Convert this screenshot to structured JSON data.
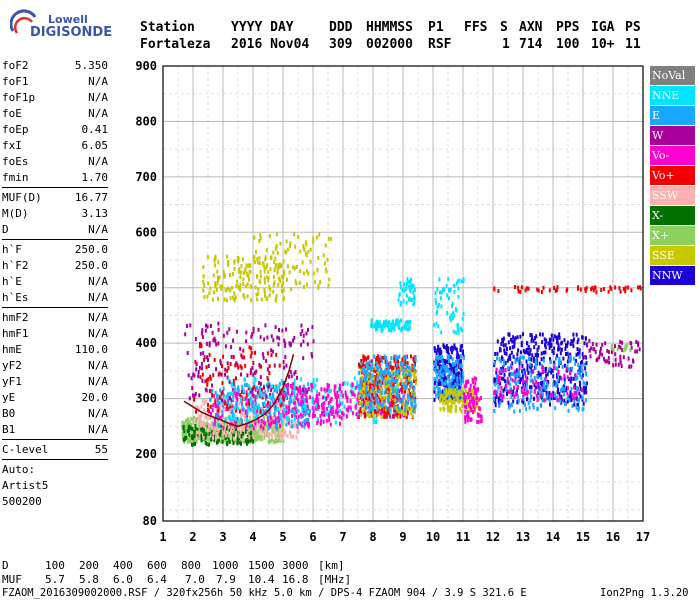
{
  "logo": {
    "line1": "Lowell",
    "line2": "DIGISONDE"
  },
  "header": {
    "labels": [
      "Station",
      "YYYY DAY",
      "DDD",
      "HHMMSS",
      "P1",
      "FFS",
      "S",
      "AXN",
      "PPS",
      "IGA",
      "PS"
    ],
    "values": [
      "Fortaleza",
      "2016 Nov04",
      "309",
      "002000",
      "RSF",
      "1",
      "714",
      "100",
      "10+",
      "11"
    ]
  },
  "params": {
    "group1": [
      {
        "k": "foF2",
        "v": "5.350"
      },
      {
        "k": "foF1",
        "v": "N/A"
      },
      {
        "k": "foF1p",
        "v": "N/A"
      },
      {
        "k": "foE",
        "v": "N/A"
      },
      {
        "k": "foEp",
        "v": "0.41"
      },
      {
        "k": "fxI",
        "v": "6.05"
      },
      {
        "k": "foEs",
        "v": "N/A"
      },
      {
        "k": "fmin",
        "v": "1.70"
      }
    ],
    "group2": [
      {
        "k": "MUF(D)",
        "v": "16.77"
      },
      {
        "k": "M(D)",
        "v": "3.13"
      },
      {
        "k": "D",
        "v": "N/A"
      }
    ],
    "group3": [
      {
        "k": "h`F",
        "v": "250.0"
      },
      {
        "k": "h`F2",
        "v": "250.0"
      },
      {
        "k": "h`E",
        "v": "N/A"
      },
      {
        "k": "h`Es",
        "v": "N/A"
      }
    ],
    "group4": [
      {
        "k": "hmF2",
        "v": "N/A"
      },
      {
        "k": "hmF1",
        "v": "N/A"
      },
      {
        "k": "hmE",
        "v": "110.0"
      },
      {
        "k": "yF2",
        "v": "N/A"
      },
      {
        "k": "yF1",
        "v": "N/A"
      },
      {
        "k": "yE",
        "v": "20.0"
      },
      {
        "k": "B0",
        "v": "N/A"
      },
      {
        "k": "B1",
        "v": "N/A"
      }
    ],
    "group5": [
      {
        "k": "C-level",
        "v": "55"
      }
    ],
    "autoscaling": [
      "Auto:",
      "Artist5",
      "500200"
    ]
  },
  "legend": [
    {
      "label": "NoVal",
      "color": "#808080"
    },
    {
      "label": "NNE",
      "color": "#00e5ff"
    },
    {
      "label": "E",
      "color": "#18a8ff"
    },
    {
      "label": "W",
      "color": "#a8009a"
    },
    {
      "label": "Vo-",
      "color": "#ff00d0"
    },
    {
      "label": "Vo+",
      "color": "#f00000"
    },
    {
      "label": "SSW",
      "color": "#ffb0b0"
    },
    {
      "label": "X-",
      "color": "#007000"
    },
    {
      "label": "X+",
      "color": "#8cd060"
    },
    {
      "label": "SSE",
      "color": "#c8c800"
    },
    {
      "label": "NNW",
      "color": "#1c00d8"
    }
  ],
  "footer": {
    "d_label": "D",
    "d_values": [
      "100",
      "200",
      "400",
      "600",
      "800",
      "1000",
      "1500",
      "3000",
      "[km]"
    ],
    "muf_label": "MUF",
    "muf_values": [
      "5.7",
      "5.8",
      "6.0",
      "6.4",
      "7.0",
      "7.9",
      "10.4",
      "16.8",
      "[MHz]"
    ],
    "info": "FZAOM_2016309002000.RSF / 320fx256h 50 kHz 5.0 km / DPS-4 FZAOM 904 / 3.9 S 321.6 E",
    "version": "Ion2Png 1.3.20"
  },
  "chart_data": {
    "type": "scatter",
    "xlabel": "",
    "ylabel": "",
    "xlim": [
      1,
      17
    ],
    "ylim": [
      80,
      900
    ],
    "xticks": [
      "1",
      "2",
      "3",
      "4",
      "5",
      "6",
      "7",
      "8",
      "9",
      "10",
      "11",
      "12",
      "13",
      "14",
      "15",
      "16",
      "17"
    ],
    "yticks": [
      "80",
      "200",
      "300",
      "400",
      "500",
      "600",
      "700",
      "800",
      "900"
    ],
    "grid": true,
    "trace": {
      "x": [
        1.7,
        2.0,
        2.3,
        2.6,
        2.9,
        3.2,
        3.5,
        3.8,
        4.1,
        4.4,
        4.7,
        5.0,
        5.2,
        5.35
      ],
      "y": [
        295,
        285,
        275,
        268,
        262,
        255,
        250,
        255,
        262,
        272,
        290,
        320,
        350,
        380
      ],
      "color": "#8b0000"
    },
    "clusters": [
      {
        "x": [
          1.6,
          5.0
        ],
        "y": [
          225,
          270
        ],
        "n": 420,
        "color": "#8cd060"
      },
      {
        "x": [
          1.6,
          4.0
        ],
        "y": [
          220,
          255
        ],
        "n": 140,
        "color": "#007000"
      },
      {
        "x": [
          2.0,
          5.5
        ],
        "y": [
          230,
          300
        ],
        "n": 260,
        "color": "#ffb0b0"
      },
      {
        "x": [
          2.5,
          7.0
        ],
        "y": [
          250,
          320
        ],
        "n": 220,
        "color": "#ff00d0"
      },
      {
        "x": [
          2.5,
          6.0
        ],
        "y": [
          250,
          330
        ],
        "n": 180,
        "color": "#18a8ff"
      },
      {
        "x": [
          1.7,
          6.0
        ],
        "y": [
          300,
          440
        ],
        "n": 180,
        "color": "#a8009a"
      },
      {
        "x": [
          2.0,
          5.0
        ],
        "y": [
          280,
          400
        ],
        "n": 90,
        "color": "#f00000"
      },
      {
        "x": [
          2.3,
          5.0
        ],
        "y": [
          480,
          560
        ],
        "n": 170,
        "color": "#c8c800"
      },
      {
        "x": [
          4.0,
          6.6
        ],
        "y": [
          500,
          600
        ],
        "n": 90,
        "color": "#c8c800"
      },
      {
        "x": [
          3.0,
          9.0
        ],
        "y": [
          260,
          340
        ],
        "n": 220,
        "color": "#00e5ff"
      },
      {
        "x": [
          5.0,
          9.2
        ],
        "y": [
          270,
          330
        ],
        "n": 200,
        "color": "#ff00d0"
      },
      {
        "x": [
          7.5,
          9.4
        ],
        "y": [
          270,
          380
        ],
        "n": 300,
        "color": "#f00000"
      },
      {
        "x": [
          7.5,
          9.4
        ],
        "y": [
          270,
          360
        ],
        "n": 200,
        "color": "#c8c800"
      },
      {
        "x": [
          7.5,
          9.4
        ],
        "y": [
          280,
          380
        ],
        "n": 180,
        "color": "#18a8ff"
      },
      {
        "x": [
          7.9,
          9.2
        ],
        "y": [
          425,
          445
        ],
        "n": 90,
        "color": "#00e5ff"
      },
      {
        "x": [
          8.8,
          9.4
        ],
        "y": [
          470,
          520
        ],
        "n": 40,
        "color": "#00e5ff"
      },
      {
        "x": [
          10.0,
          11.0
        ],
        "y": [
          300,
          400
        ],
        "n": 220,
        "color": "#1c00d8"
      },
      {
        "x": [
          10.0,
          11.0
        ],
        "y": [
          300,
          380
        ],
        "n": 130,
        "color": "#18a8ff"
      },
      {
        "x": [
          10.0,
          11.0
        ],
        "y": [
          420,
          520
        ],
        "n": 60,
        "color": "#00e5ff"
      },
      {
        "x": [
          10.2,
          11.5
        ],
        "y": [
          280,
          320
        ],
        "n": 120,
        "color": "#c8c800"
      },
      {
        "x": [
          11.0,
          11.6
        ],
        "y": [
          260,
          340
        ],
        "n": 80,
        "color": "#ff00d0"
      },
      {
        "x": [
          12.0,
          15.1
        ],
        "y": [
          290,
          420
        ],
        "n": 420,
        "color": "#1c00d8"
      },
      {
        "x": [
          12.0,
          15.1
        ],
        "y": [
          280,
          380
        ],
        "n": 200,
        "color": "#18a8ff"
      },
      {
        "x": [
          12.0,
          15.0
        ],
        "y": [
          300,
          360
        ],
        "n": 80,
        "color": "#ff00d0"
      },
      {
        "x": [
          12.0,
          16.9
        ],
        "y": [
          495,
          505
        ],
        "n": 50,
        "color": "#f00000"
      },
      {
        "x": [
          15.0,
          16.9
        ],
        "y": [
          360,
          410
        ],
        "n": 60,
        "color": "#a8009a"
      },
      {
        "x": [
          15.5,
          16.9
        ],
        "y": [
          390,
          400
        ],
        "n": 12,
        "color": "#8cd060"
      }
    ]
  }
}
